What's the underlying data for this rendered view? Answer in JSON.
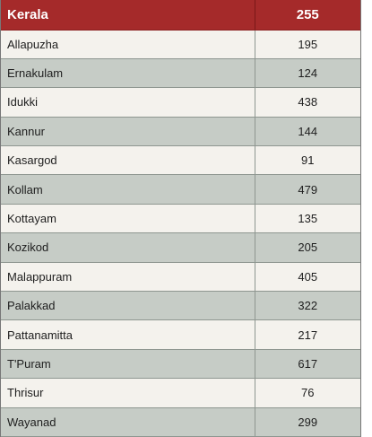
{
  "header": {
    "name": "Kerala",
    "value": "255"
  },
  "rows": [
    {
      "name": "Allapuzha",
      "value": "195"
    },
    {
      "name": "Ernakulam",
      "value": "124"
    },
    {
      "name": "Idukki",
      "value": "438"
    },
    {
      "name": "Kannur",
      "value": "144"
    },
    {
      "name": "Kasargod",
      "value": "91"
    },
    {
      "name": "Kollam",
      "value": "479"
    },
    {
      "name": "Kottayam",
      "value": "135"
    },
    {
      "name": "Kozikod",
      "value": "205"
    },
    {
      "name": "Malappuram",
      "value": "405"
    },
    {
      "name": "Palakkad",
      "value": "322"
    },
    {
      "name": "Pattanamitta",
      "value": "217"
    },
    {
      "name": "T'Puram",
      "value": "617"
    },
    {
      "name": "Thrisur",
      "value": "76"
    },
    {
      "name": "Wayanad",
      "value": "299"
    }
  ],
  "colors": {
    "header_bg": "#a52a2a",
    "row_light": "#f4f2ed",
    "row_dark": "#c6ccc6"
  }
}
